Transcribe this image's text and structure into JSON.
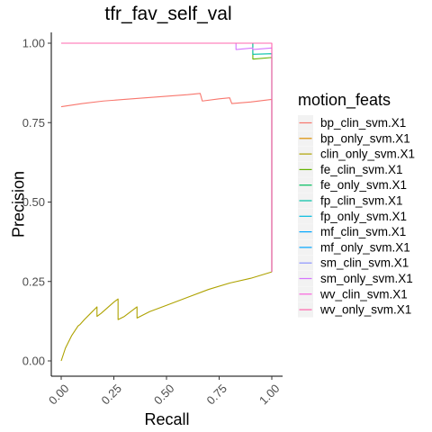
{
  "chart_data": {
    "type": "line",
    "title": "tfr_fav_self_val",
    "xlabel": "Recall",
    "ylabel": "Precision",
    "xlim": [
      0,
      1
    ],
    "ylim": [
      0,
      1
    ],
    "x_ticks": [
      "0.00",
      "0.25",
      "0.50",
      "0.75",
      "1.00"
    ],
    "y_ticks": [
      "0.00",
      "0.25",
      "0.50",
      "0.75",
      "1.00"
    ],
    "grid": false,
    "legend_title": "motion_feats",
    "legend_position": "right",
    "series": [
      {
        "name": "bp_clin_svm.X1",
        "color": "#F8766D",
        "points": [
          [
            0.0,
            0.8
          ],
          [
            0.1,
            0.81
          ],
          [
            0.2,
            0.818
          ],
          [
            0.3,
            0.823
          ],
          [
            0.4,
            0.828
          ],
          [
            0.5,
            0.833
          ],
          [
            0.6,
            0.838
          ],
          [
            0.66,
            0.842
          ],
          [
            0.67,
            0.818
          ],
          [
            0.75,
            0.825
          ],
          [
            0.8,
            0.828
          ],
          [
            0.81,
            0.81
          ],
          [
            0.9,
            0.815
          ],
          [
            1.0,
            0.823
          ],
          [
            1.0,
            0.28
          ]
        ]
      },
      {
        "name": "bp_only_svm.X1",
        "color": "#DB8E00",
        "points": [
          [
            0.0,
            1.0
          ],
          [
            1.0,
            1.0
          ]
        ]
      },
      {
        "name": "clin_only_svm.X1",
        "color": "#AEA200",
        "points": [
          [
            0.0,
            0.0
          ],
          [
            0.02,
            0.04
          ],
          [
            0.05,
            0.08
          ],
          [
            0.08,
            0.11
          ],
          [
            0.09,
            0.115
          ],
          [
            0.11,
            0.13
          ],
          [
            0.14,
            0.15
          ],
          [
            0.17,
            0.17
          ],
          [
            0.17,
            0.14
          ],
          [
            0.19,
            0.15
          ],
          [
            0.25,
            0.185
          ],
          [
            0.27,
            0.195
          ],
          [
            0.27,
            0.13
          ],
          [
            0.3,
            0.14
          ],
          [
            0.36,
            0.17
          ],
          [
            0.36,
            0.135
          ],
          [
            0.42,
            0.155
          ],
          [
            0.5,
            0.175
          ],
          [
            0.6,
            0.2
          ],
          [
            0.7,
            0.225
          ],
          [
            0.8,
            0.245
          ],
          [
            0.9,
            0.26
          ],
          [
            1.0,
            0.28
          ]
        ]
      },
      {
        "name": "fe_clin_svm.X1",
        "color": "#64B200",
        "points": [
          [
            0.0,
            1.0
          ],
          [
            0.91,
            1.0
          ],
          [
            0.91,
            0.95
          ],
          [
            1.0,
            0.955
          ],
          [
            1.0,
            0.28
          ]
        ]
      },
      {
        "name": "fe_only_svm.X1",
        "color": "#00BD5C",
        "points": [
          [
            0.0,
            1.0
          ],
          [
            1.0,
            1.0
          ]
        ]
      },
      {
        "name": "fp_clin_svm.X1",
        "color": "#00C1A7",
        "points": [
          [
            0.0,
            1.0
          ],
          [
            0.91,
            1.0
          ],
          [
            0.91,
            0.965
          ],
          [
            1.0,
            0.967
          ],
          [
            1.0,
            0.28
          ]
        ]
      },
      {
        "name": "fp_only_svm.X1",
        "color": "#00BADE",
        "points": [
          [
            0.0,
            1.0
          ],
          [
            1.0,
            1.0
          ]
        ]
      },
      {
        "name": "mf_clin_svm.X1",
        "color": "#00A6FF",
        "points": [
          [
            0.0,
            1.0
          ],
          [
            1.0,
            1.0
          ]
        ]
      },
      {
        "name": "mf_only_svm.X1",
        "color": "#00A6FF",
        "points": [
          [
            0.0,
            1.0
          ],
          [
            1.0,
            1.0
          ]
        ]
      },
      {
        "name": "sm_clin_svm.X1",
        "color": "#8B93FF",
        "points": [
          [
            0.0,
            1.0
          ],
          [
            1.0,
            1.0
          ]
        ]
      },
      {
        "name": "sm_only_svm.X1",
        "color": "#D575FE",
        "points": [
          [
            0.0,
            1.0
          ],
          [
            0.83,
            1.0
          ],
          [
            0.83,
            0.98
          ],
          [
            0.91,
            0.985
          ],
          [
            0.91,
            0.98
          ],
          [
            1.0,
            0.985
          ],
          [
            1.0,
            0.28
          ]
        ]
      },
      {
        "name": "wv_clin_svm.X1",
        "color": "#F962DD",
        "points": [
          [
            0.0,
            1.0
          ],
          [
            1.0,
            1.0
          ]
        ]
      },
      {
        "name": "wv_only_svm.X1",
        "color": "#FF65AC",
        "points": [
          [
            0.0,
            1.0
          ],
          [
            1.0,
            1.0
          ],
          [
            1.0,
            0.28
          ]
        ]
      }
    ]
  }
}
